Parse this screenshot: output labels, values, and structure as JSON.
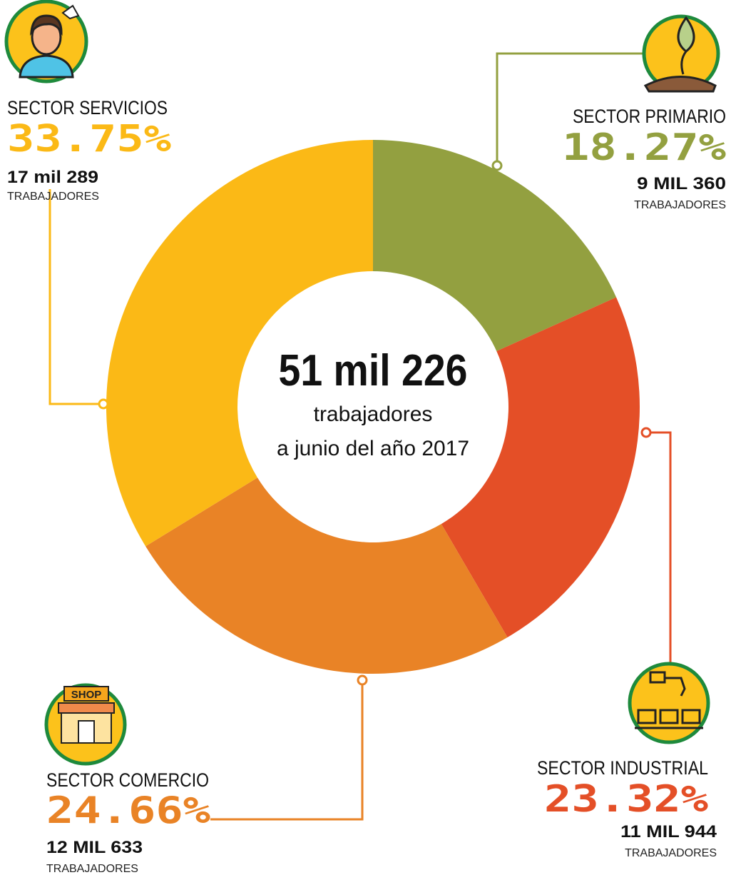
{
  "chart_data": {
    "type": "pie",
    "donut": true,
    "categories": [
      "SECTOR PRIMARIO",
      "SECTOR INDUSTRIAL",
      "SECTOR COMERCIO",
      "SECTOR SERVICIOS"
    ],
    "values": [
      18.27,
      23.32,
      24.66,
      33.75
    ],
    "value_labels": [
      "18.27%",
      "23.32%",
      "24.66%",
      "33.75%"
    ],
    "colors": [
      "#93a040",
      "#e44f27",
      "#e98326",
      "#fbb916"
    ],
    "worker_counts": [
      "9 MIL 360",
      "11 MIL 944",
      "12 MIL 633",
      "17 mil 289"
    ],
    "worker_unit": "TRABAJADORES",
    "center": {
      "total": "51 mil 226",
      "line1": "trabajadores",
      "line2": "a junio del año 2017"
    },
    "shop_sign": "SHOP"
  }
}
